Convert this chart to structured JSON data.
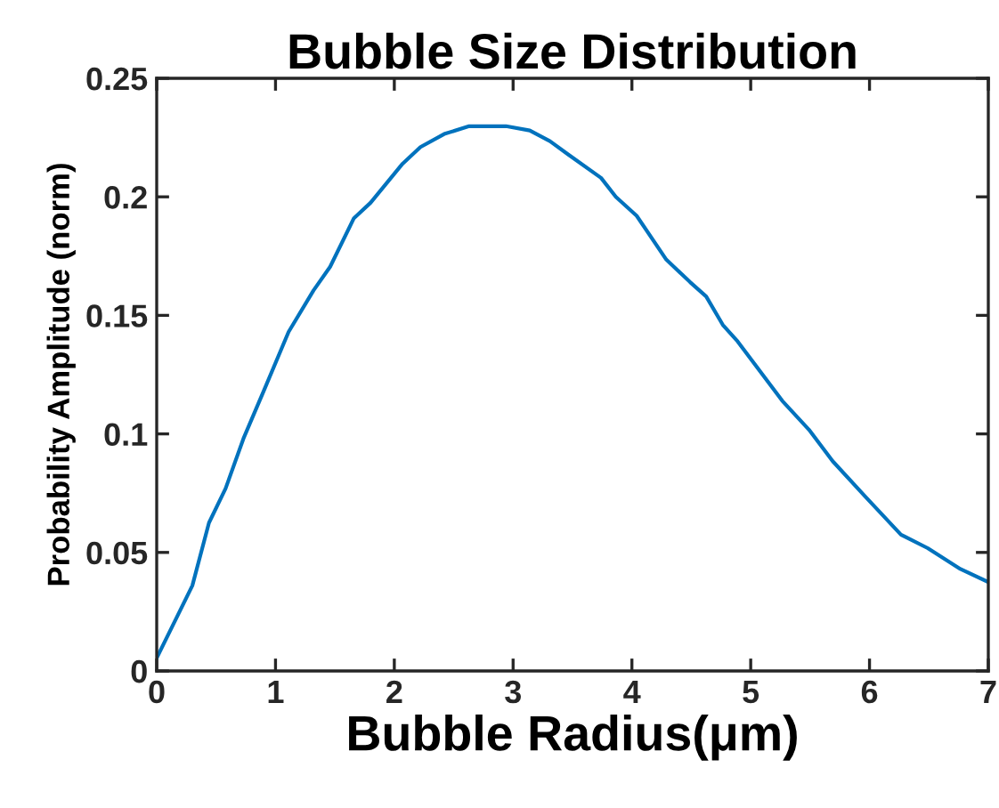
{
  "chart_data": {
    "type": "line",
    "title": "Bubble Size Distribution",
    "xlabel": "Bubble Radius(μm)",
    "ylabel": "Probability Amplitude (norm)",
    "x": [
      0,
      0.3,
      0.44,
      0.58,
      0.73,
      0.9,
      1.11,
      1.32,
      1.46,
      1.66,
      1.8,
      2.07,
      2.22,
      2.42,
      2.63,
      2.94,
      3.14,
      3.31,
      3.46,
      3.74,
      3.865,
      4.04,
      4.29,
      4.49,
      4.625,
      4.765,
      4.89,
      5.265,
      5.49,
      5.69,
      5.965,
      6.265,
      6.49,
      6.765,
      7.0
    ],
    "series": [
      {
        "color": "#0072bd",
        "values": [
          0.0055,
          0.036,
          0.0625,
          0.077,
          0.098,
          0.118,
          0.143,
          0.1605,
          0.1705,
          0.191,
          0.1975,
          0.214,
          0.221,
          0.2265,
          0.2298,
          0.2298,
          0.228,
          0.2235,
          0.218,
          0.208,
          0.2,
          0.192,
          0.1735,
          0.164,
          0.158,
          0.146,
          0.139,
          0.114,
          0.1018,
          0.0885,
          0.0735,
          0.0575,
          0.0518,
          0.043,
          0.0375
        ]
      }
    ],
    "xlim": [
      0,
      7
    ],
    "xticks": [
      0,
      1,
      2,
      3,
      4,
      5,
      6,
      7
    ],
    "ylim": [
      0,
      0.25
    ],
    "yticks": [
      0,
      0.05,
      0.1,
      0.15,
      0.2,
      0.25
    ],
    "grid": false,
    "line_style": "solid",
    "marker": "none"
  }
}
